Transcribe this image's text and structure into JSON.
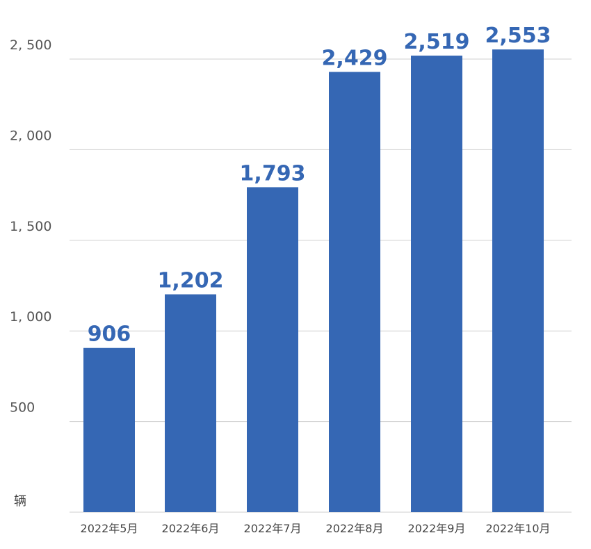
{
  "chart_data": {
    "type": "bar",
    "title": "",
    "xlabel": "",
    "ylabel": "辆",
    "categories": [
      "2022年5月",
      "2022年6月",
      "2022年7月",
      "2022年8月",
      "2022年9月",
      "2022年10月"
    ],
    "values": [
      906,
      1202,
      1793,
      2429,
      2519,
      2553
    ],
    "value_labels": [
      "906",
      "1,202",
      "1,793",
      "2,429",
      "2,519",
      "2,553"
    ],
    "ylim": [
      0,
      2500
    ],
    "yticks": [
      500,
      1000,
      1500,
      2000,
      2500
    ],
    "ytick_labels": [
      "500",
      "1, 000",
      "1, 500",
      "2, 000",
      "2, 500"
    ],
    "grid": true,
    "legend": "none",
    "bar_color": "#3567b4",
    "label_color": "#3567b4",
    "grid_color": "#cfcfcf"
  }
}
